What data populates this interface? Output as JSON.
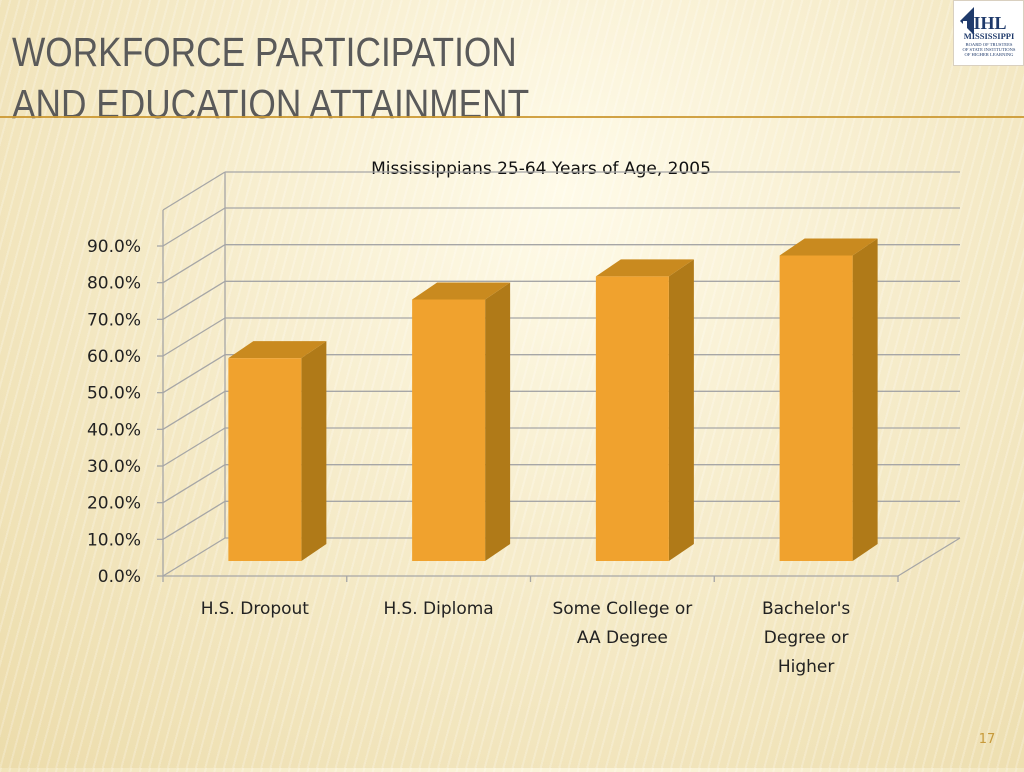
{
  "slide": {
    "title_line1": "WORKFORCE PARTICIPATION",
    "title_line2": "AND EDUCATION ATTAINMENT",
    "page_number": "17",
    "logo": {
      "icon": "ihl-building-logo",
      "mark": "IHL",
      "line1": "MISSISSIPPI",
      "line2": "BOARD OF TRUSTEES",
      "line3": "OF STATE INSTITUTIONS",
      "line4": "OF HIGHER LEARNING"
    }
  },
  "chart_data": {
    "type": "bar",
    "title": "Mississippians 25-64 Years of Age, 2005",
    "categories": [
      [
        "H.S. Dropout"
      ],
      [
        "H.S. Diploma"
      ],
      [
        "Some College or",
        "AA Degree"
      ],
      [
        "Bachelor's",
        "Degree or",
        "Higher"
      ]
    ],
    "values": [
      57.5,
      73.5,
      79.8,
      85.5
    ],
    "ylim": [
      0,
      90
    ],
    "yticks": [
      "0.0%",
      "10.0%",
      "20.0%",
      "30.0%",
      "40.0%",
      "50.0%",
      "60.0%",
      "70.0%",
      "80.0%",
      "90.0%"
    ],
    "grid": true,
    "legend": "none",
    "three_d": true,
    "colors": {
      "bar_front": "#f0a22e",
      "bar_top": "#c98a1f",
      "bar_side": "#b07a18",
      "grid": "#a6a6a6",
      "text": "#222222"
    }
  }
}
